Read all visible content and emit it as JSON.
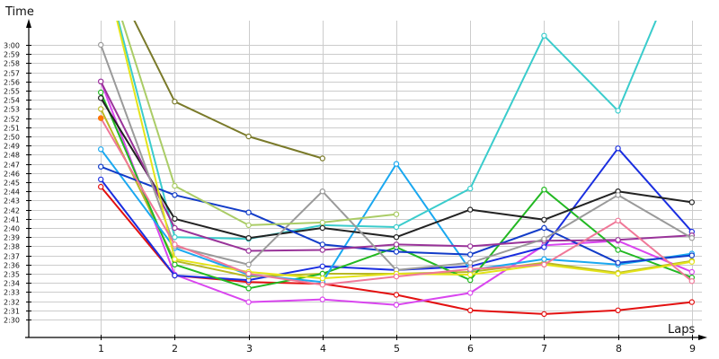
{
  "chart_data": {
    "type": "line",
    "xlabel": "Laps",
    "ylabel": "Time",
    "x_ticks": [
      "1",
      "2",
      "3",
      "4",
      "5",
      "6",
      "7",
      "8",
      "9"
    ],
    "y_ticks": [
      "2:30",
      "2:31",
      "2:32",
      "2:33",
      "2:34",
      "2:35",
      "2:36",
      "2:37",
      "2:38",
      "2:39",
      "2:40",
      "2:41",
      "2:42",
      "2:43",
      "2:44",
      "2:45",
      "2:46",
      "2:47",
      "2:48",
      "2:49",
      "2:50",
      "2:51",
      "2:52",
      "2:53",
      "2:54",
      "2:55",
      "2:56",
      "2:57",
      "2:58",
      "2:59",
      "3:00"
    ],
    "y_tick_values": [
      150,
      151,
      152,
      153,
      154,
      155,
      156,
      157,
      158,
      159,
      160,
      161,
      162,
      163,
      164,
      165,
      166,
      167,
      168,
      169,
      170,
      171,
      172,
      173,
      174,
      175,
      176,
      177,
      178,
      179,
      180
    ],
    "x_range": [
      0,
      9.1
    ],
    "y_range": [
      149,
      183
    ],
    "y_unit": "seconds",
    "grid": {
      "horizontal": true,
      "vertical": true
    },
    "series": [
      {
        "color": "#e31010",
        "values": [
          164.5,
          154.8,
          154.1,
          153.9,
          152.7,
          151.0,
          150.6,
          151.0,
          151.9
        ]
      },
      {
        "color": "#d946ef",
        "values": [
          176.0,
          154.9,
          151.9,
          152.2,
          151.6,
          152.9,
          158.1,
          158.6,
          155.2
        ]
      },
      {
        "color": "#1a2ee0",
        "values": [
          165.3,
          154.8,
          154.3,
          155.8,
          155.4,
          155.8,
          157.9,
          168.7,
          159.6
        ]
      },
      {
        "color": "#b8b824",
        "values": [
          173.0,
          156.4,
          154.7,
          155.0,
          155.0,
          155.2,
          156.2,
          155.1,
          156.4
        ]
      },
      {
        "color": "#22b822",
        "values": [
          174.8,
          156.0,
          153.4,
          155.0,
          157.9,
          154.3,
          164.2,
          157.6,
          154.6
        ]
      },
      {
        "color": "#1aa8f0",
        "values": [
          168.6,
          157.8,
          154.9,
          154.1,
          167.0,
          155.4,
          156.6,
          156.0,
          157.2
        ]
      },
      {
        "color": "#3acccc",
        "values": [
          190.0,
          159.0,
          158.8,
          160.3,
          160.1,
          164.3,
          181.0,
          172.8,
          192.0
        ]
      },
      {
        "color": "#222222",
        "values": [
          174.2,
          161.0,
          158.9,
          160.0,
          159.0,
          162.0,
          160.9,
          164.0,
          162.8
        ]
      },
      {
        "color": "#123cc8",
        "values": [
          166.7,
          163.6,
          161.7,
          158.2,
          157.4,
          157.1,
          160.0,
          156.2,
          157.0
        ]
      },
      {
        "color": "#993399",
        "values": [
          176.0,
          160.0,
          157.5,
          157.6,
          158.2,
          158.0,
          158.6,
          158.7,
          159.2
        ]
      },
      {
        "color": "#9a9a9a",
        "values": [
          180.0,
          158.0,
          156.0,
          164.0,
          155.4,
          156.2,
          158.8,
          163.6,
          158.9
        ]
      },
      {
        "color": "#aacc66",
        "values": [
          190.0,
          164.6,
          160.3,
          160.6,
          161.5
        ]
      },
      {
        "color": "#7a7a2a",
        "values": [
          190.0,
          173.8,
          170.0,
          167.6
        ]
      },
      {
        "color": "#e4e41a",
        "values": [
          190.0,
          156.6,
          155.2,
          154.5,
          155.0,
          154.9,
          156.0,
          155.0,
          156.3
        ]
      },
      {
        "color": "#f07898",
        "values": [
          172.0,
          158.2,
          155.0,
          153.8,
          154.7,
          155.5,
          156.0,
          160.8,
          154.2
        ]
      },
      {
        "color": "#ff7700",
        "values": [
          172.0
        ]
      }
    ]
  }
}
